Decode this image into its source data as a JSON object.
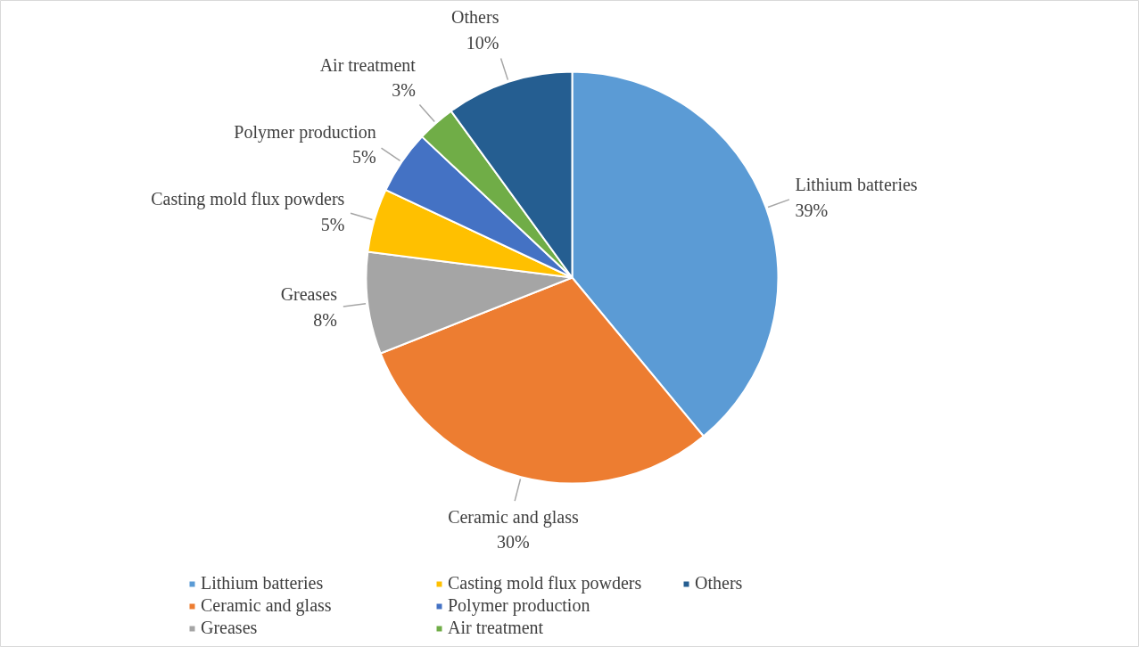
{
  "chart_data": {
    "type": "pie",
    "categories": [
      "Lithium batteries",
      "Ceramic and glass",
      "Greases",
      "Casting mold flux powders",
      "Polymer production",
      "Air treatment",
      "Others"
    ],
    "values": [
      39,
      30,
      8,
      5,
      5,
      3,
      10
    ],
    "value_labels": [
      "39%",
      "30%",
      "8%",
      "5%",
      "5%",
      "3%",
      "10%"
    ],
    "colors": [
      "#5b9bd5",
      "#ed7d31",
      "#a5a5a5",
      "#ffc000",
      "#4472c4",
      "#70ad47",
      "#255e91"
    ],
    "legend": "bottom"
  }
}
